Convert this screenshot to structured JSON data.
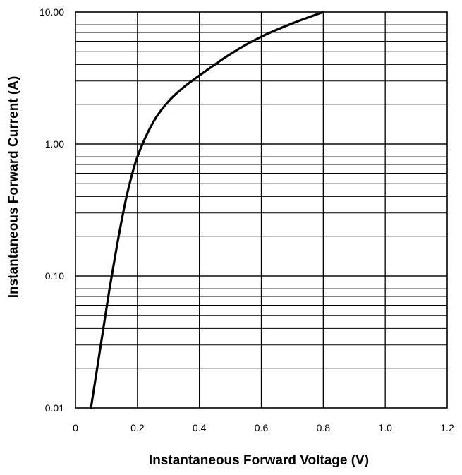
{
  "chart_data": {
    "type": "line",
    "title": "",
    "xlabel": "Instantaneous Forward Voltage (V)",
    "ylabel": "Instantaneous Forward Current (A)",
    "xlim": [
      0,
      1.2
    ],
    "ylim": [
      0.01,
      10
    ],
    "y_scale": "log",
    "grid": true,
    "x_ticks": [
      0,
      0.2,
      0.4,
      0.6,
      0.8,
      1.0,
      1.2
    ],
    "x_tick_labels": [
      "0",
      "0.2",
      "0.4",
      "0.6",
      "0.8",
      "1.0",
      "1.2"
    ],
    "y_ticks": [
      0.01,
      0.1,
      1,
      10
    ],
    "y_tick_labels": [
      "0.01",
      "0.10",
      "1.00",
      "10.00"
    ],
    "series": [
      {
        "name": "",
        "x": [
          0.05,
          0.07,
          0.09,
          0.11,
          0.13,
          0.15,
          0.17,
          0.2,
          0.25,
          0.3,
          0.35,
          0.4,
          0.5,
          0.6,
          0.7,
          0.8
        ],
        "y": [
          0.01,
          0.02,
          0.04,
          0.08,
          0.15,
          0.27,
          0.45,
          0.8,
          1.45,
          2.1,
          2.7,
          3.3,
          4.8,
          6.5,
          8.2,
          10.0
        ]
      }
    ]
  }
}
